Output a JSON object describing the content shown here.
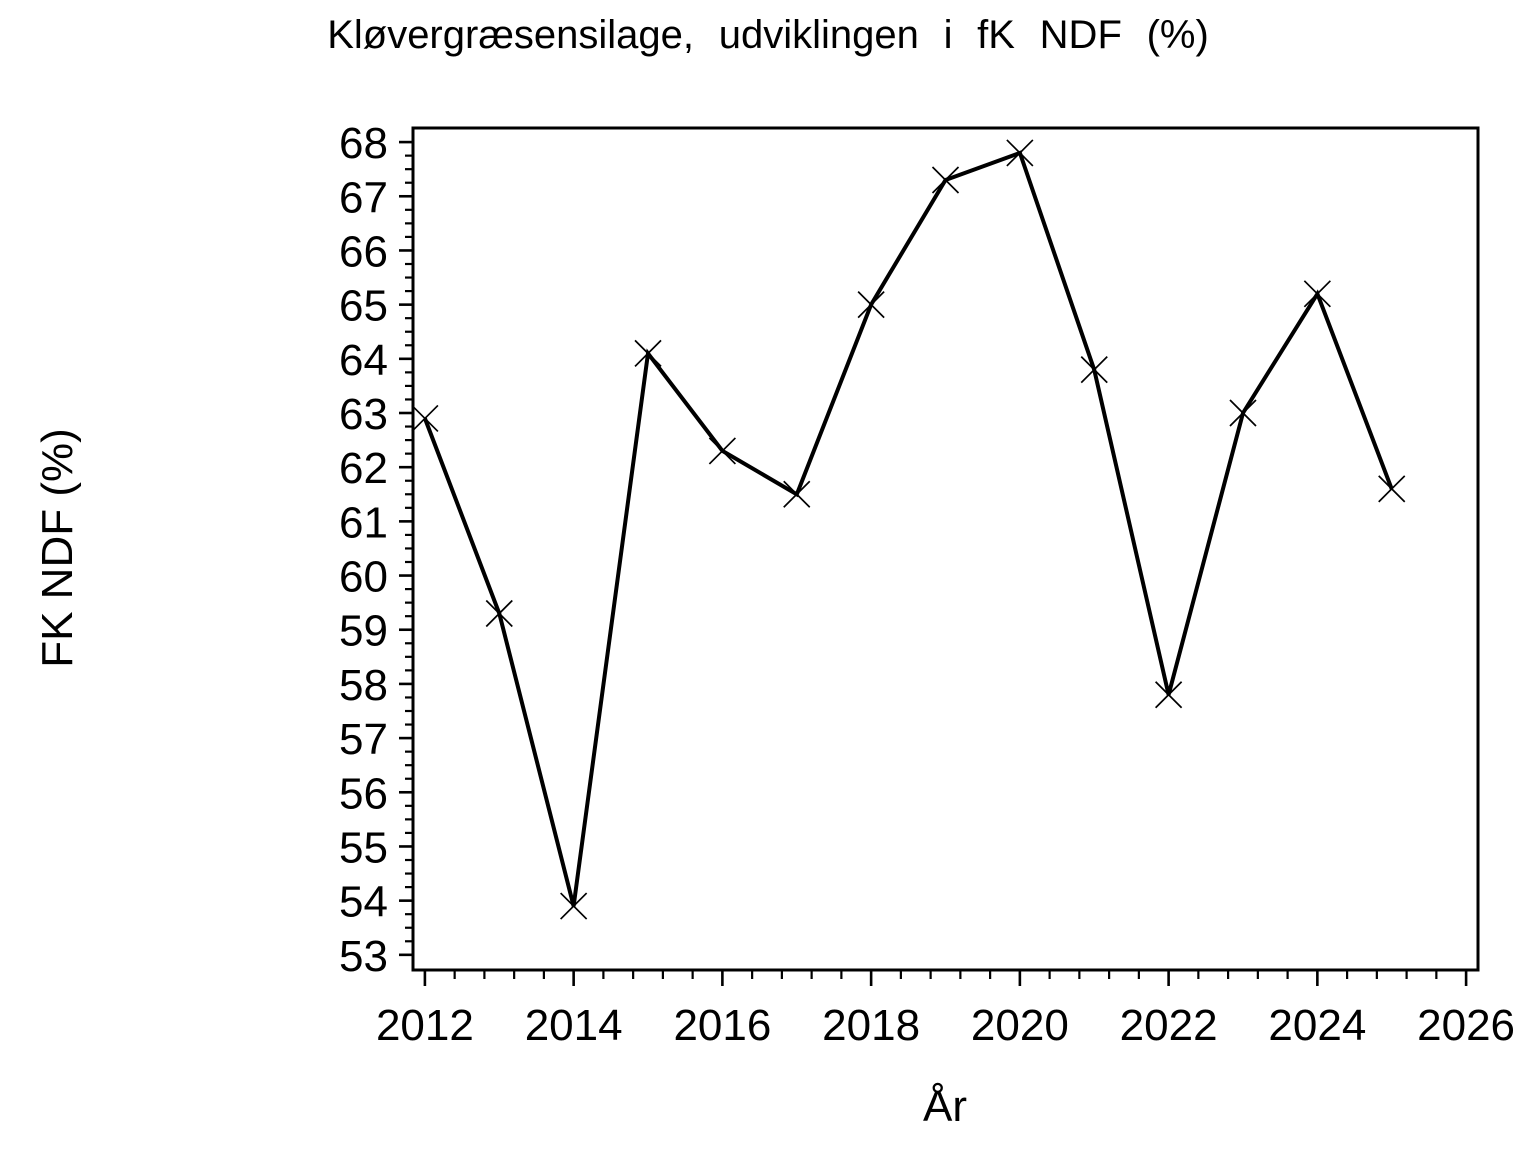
{
  "figure": {
    "background": "#ffffff",
    "foreground": "#000000"
  },
  "chart_data": {
    "type": "line",
    "title": "Kløvergræsensilage, udviklingen i fK NDF (%)",
    "xlabel": "År",
    "ylabel": "FK NDF (%)",
    "series": [
      {
        "name": "fK NDF",
        "x": [
          2012,
          2013,
          2014,
          2015,
          2016,
          2017,
          2018,
          2019,
          2020,
          2021,
          2022,
          2023,
          2024,
          2025
        ],
        "y": [
          62.9,
          59.3,
          53.9,
          64.1,
          62.3,
          61.5,
          65.0,
          67.3,
          67.8,
          63.8,
          57.8,
          63.0,
          65.2,
          61.6
        ]
      }
    ],
    "xlim": [
      2011.84,
      2026.16
    ],
    "ylim": [
      52.72,
      68.26
    ],
    "x_major_ticks": [
      2012,
      2014,
      2016,
      2018,
      2020,
      2022,
      2024,
      2026
    ],
    "x_minor_start": 2012,
    "x_minor_end": 2026,
    "x_minor_step": 0.4,
    "y_major_ticks": [
      53,
      54,
      55,
      56,
      57,
      58,
      59,
      60,
      61,
      62,
      63,
      64,
      65,
      66,
      67,
      68
    ],
    "y_minor_start": 53,
    "y_minor_end": 68,
    "y_minor_step": 0.25,
    "grid": false,
    "legend": null,
    "marker": "x",
    "line_color": "#000000",
    "marker_color": "#000000",
    "frame": true
  }
}
